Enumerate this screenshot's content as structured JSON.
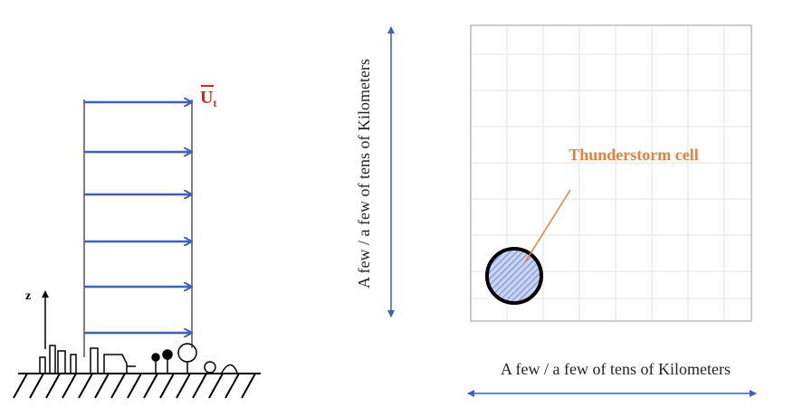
{
  "left_panel": {
    "velocity_label": {
      "symbol": "U",
      "subscript": "t"
    },
    "axis_label": "z"
  },
  "right_panel": {
    "annotation": "Thunderstorm cell",
    "vertical_extent": "A few / a few of tens of Kilometers",
    "horizontal_extent": "A few / a few of tens of Kilometers"
  }
}
